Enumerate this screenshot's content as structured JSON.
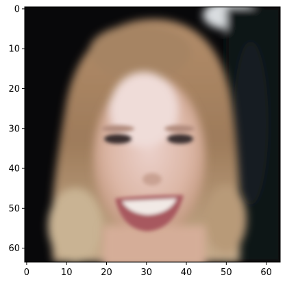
{
  "image": {
    "description": "blurry low-resolution portrait of a smiling woman with shoulder-length light brown/blonde hair on a dark background",
    "pixel_grid": [
      64,
      64
    ]
  },
  "axes": {
    "x_ticks": [
      0,
      10,
      20,
      30,
      40,
      50,
      60
    ],
    "y_ticks": [
      0,
      10,
      20,
      30,
      40,
      50,
      60
    ],
    "xlim": [
      -0.5,
      63.5
    ],
    "ylim": [
      63.5,
      -0.5
    ]
  },
  "colors": {
    "background": "#0a0a0c",
    "hair": "#a0805f",
    "skin": "#e2c2b8",
    "lips": "#a8585f",
    "teeth": "#f1e9e5",
    "axis": "#000000"
  }
}
